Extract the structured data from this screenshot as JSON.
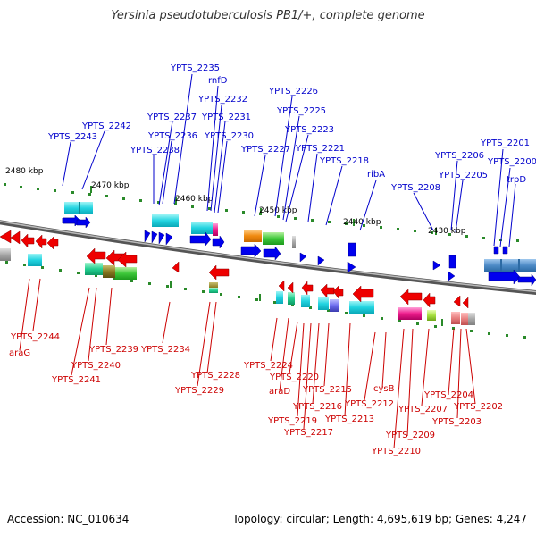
{
  "title": "Yersinia pseudotuberculosis PB1/+, complete genome",
  "accession_text": "Accession: NC_010634",
  "info_text": "Topology: circular; Length: 4,695,619 bp; Genes: 4,247",
  "colors": {
    "top_label": "#0000cc",
    "bottom_label": "#cc0000",
    "forward_gene": "#0000ee",
    "reverse_gene": "#ee0000",
    "backbone": "#777777",
    "tick": "#008800"
  },
  "kbp_labels": [
    "2480 kbp",
    "2470 kbp",
    "2460 kbp",
    "2450 kbp",
    "2440 kbp",
    "2430 kbp"
  ],
  "top_labels": [
    "YPTS_2235",
    "rnfD",
    "YPTS_2232",
    "YPTS_2226",
    "YPTS_2237",
    "YPTS_2231",
    "YPTS_2225",
    "YPTS_2242",
    "YPTS_2223",
    "YPTS_2243",
    "YPTS_2236",
    "YPTS_2230",
    "YPTS_2201",
    "YPTS_2238",
    "YPTS_2227",
    "YPTS_2221",
    "YPTS_2206",
    "YPTS_2200",
    "YPTS_2218",
    "ribA",
    "YPTS_2205",
    "trpD",
    "YPTS_2208"
  ],
  "bottom_labels": [
    "YPTS_2244",
    "araG",
    "YPTS_2239",
    "YPTS_2234",
    "YPTS_2240",
    "YPTS_2241",
    "YPTS_2224",
    "YPTS_2228",
    "YPTS_2220",
    "cysB",
    "YPTS_2229",
    "araD",
    "YPTS_2215",
    "YPTS_2212",
    "YPTS_2204",
    "YPTS_2216",
    "YPTS_2207",
    "YPTS_2202",
    "YPTS_2219",
    "YPTS_2213",
    "YPTS_2203",
    "YPTS_2217",
    "YPTS_2209",
    "YPTS_2210"
  ]
}
